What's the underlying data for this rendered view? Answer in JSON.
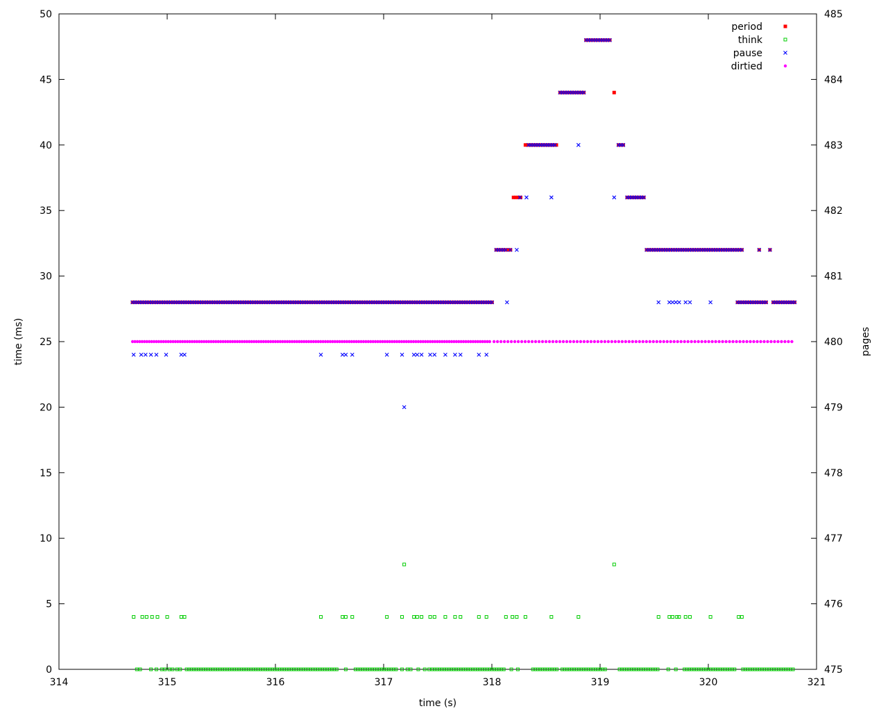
{
  "chart_data": {
    "type": "scatter",
    "title": "",
    "xlabel": "time (s)",
    "ylabel": "time (ms)",
    "y2label": "pages",
    "xlim": [
      314,
      321
    ],
    "ylim": [
      0,
      50
    ],
    "y2lim": [
      475,
      485
    ],
    "xticks": [
      314,
      315,
      316,
      317,
      318,
      319,
      320,
      321
    ],
    "yticks": [
      0,
      5,
      10,
      15,
      20,
      25,
      30,
      35,
      40,
      45,
      50
    ],
    "y2ticks": [
      475,
      476,
      477,
      478,
      479,
      480,
      481,
      482,
      483,
      484,
      485
    ],
    "grid": false,
    "legend_position": "top-right",
    "series": [
      {
        "name": "period",
        "axis": "y",
        "marker": "filled-square",
        "color": "#ff0000",
        "segments": [
          {
            "x_start": 314.68,
            "x_end": 318.01,
            "y": 28
          },
          {
            "x_start": 318.04,
            "x_end": 318.19,
            "y": 32
          },
          {
            "x_start": 318.2,
            "x_end": 318.27,
            "y": 36
          },
          {
            "x_start": 318.31,
            "x_end": 318.6,
            "y": 40
          },
          {
            "x_start": 318.63,
            "x_end": 318.85,
            "y": 44
          },
          {
            "x_start": 318.87,
            "x_end": 319.09,
            "y": 48
          },
          {
            "x_start": 319.17,
            "x_end": 319.22,
            "y": 40
          },
          {
            "x_start": 319.25,
            "x_end": 319.41,
            "y": 36
          },
          {
            "x_start": 319.43,
            "x_end": 320.31,
            "y": 32
          },
          {
            "x_start": 320.27,
            "x_end": 320.55,
            "y": 28
          },
          {
            "x_start": 320.6,
            "x_end": 320.8,
            "y": 28
          }
        ],
        "points": [
          [
            319.13,
            44
          ],
          [
            320.47,
            32
          ],
          [
            320.57,
            32
          ]
        ]
      },
      {
        "name": "think",
        "axis": "y",
        "marker": "open-square",
        "color": "#00cc00",
        "segments": [
          {
            "x_start": 315.18,
            "x_end": 316.58,
            "y": 0
          },
          {
            "x_start": 316.74,
            "x_end": 317.12,
            "y": 0
          },
          {
            "x_start": 317.45,
            "x_end": 317.98,
            "y": 0
          },
          {
            "x_start": 318.0,
            "x_end": 318.12,
            "y": 0
          },
          {
            "x_start": 318.38,
            "x_end": 318.62,
            "y": 0
          },
          {
            "x_start": 318.65,
            "x_end": 319.05,
            "y": 0
          },
          {
            "x_start": 319.18,
            "x_end": 319.55,
            "y": 0
          },
          {
            "x_start": 319.78,
            "x_end": 320.25,
            "y": 0
          },
          {
            "x_start": 320.32,
            "x_end": 320.8,
            "y": 0
          }
        ],
        "points": [
          [
            314.72,
            0
          ],
          [
            314.75,
            0
          ],
          [
            314.85,
            0
          ],
          [
            314.9,
            0
          ],
          [
            314.95,
            0
          ],
          [
            314.98,
            0
          ],
          [
            315.02,
            0
          ],
          [
            315.05,
            0
          ],
          [
            315.09,
            0
          ],
          [
            315.12,
            0
          ],
          [
            316.65,
            0
          ],
          [
            317.17,
            0
          ],
          [
            317.22,
            0
          ],
          [
            317.25,
            0
          ],
          [
            317.32,
            0
          ],
          [
            317.38,
            0
          ],
          [
            317.42,
            0
          ],
          [
            318.18,
            0
          ],
          [
            318.24,
            0
          ],
          [
            319.63,
            0
          ],
          [
            319.7,
            0
          ],
          [
            314.69,
            4
          ],
          [
            314.77,
            4
          ],
          [
            314.81,
            4
          ],
          [
            314.86,
            4
          ],
          [
            314.91,
            4
          ],
          [
            315.0,
            4
          ],
          [
            315.13,
            4
          ],
          [
            315.16,
            4
          ],
          [
            316.42,
            4
          ],
          [
            316.62,
            4
          ],
          [
            316.65,
            4
          ],
          [
            316.71,
            4
          ],
          [
            317.03,
            4
          ],
          [
            317.17,
            4
          ],
          [
            317.28,
            4
          ],
          [
            317.31,
            4
          ],
          [
            317.35,
            4
          ],
          [
            317.43,
            4
          ],
          [
            317.47,
            4
          ],
          [
            317.57,
            4
          ],
          [
            317.66,
            4
          ],
          [
            317.71,
            4
          ],
          [
            317.88,
            4
          ],
          [
            317.95,
            4
          ],
          [
            318.13,
            4
          ],
          [
            318.19,
            4
          ],
          [
            318.23,
            4
          ],
          [
            318.31,
            4
          ],
          [
            318.55,
            4
          ],
          [
            318.8,
            4
          ],
          [
            319.54,
            4
          ],
          [
            319.64,
            4
          ],
          [
            319.67,
            4
          ],
          [
            319.71,
            4
          ],
          [
            319.73,
            4
          ],
          [
            319.79,
            4
          ],
          [
            319.83,
            4
          ],
          [
            320.02,
            4
          ],
          [
            320.28,
            4
          ],
          [
            320.31,
            4
          ],
          [
            317.19,
            8
          ],
          [
            319.13,
            8
          ]
        ]
      },
      {
        "name": "pause",
        "axis": "y",
        "marker": "cross",
        "color": "#0000ff",
        "segments": [
          {
            "x_start": 314.68,
            "x_end": 318.01,
            "y": 28
          },
          {
            "x_start": 318.04,
            "x_end": 318.13,
            "y": 32
          },
          {
            "x_start": 318.34,
            "x_end": 318.6,
            "y": 40
          },
          {
            "x_start": 318.63,
            "x_end": 318.85,
            "y": 44
          },
          {
            "x_start": 318.87,
            "x_end": 319.09,
            "y": 48
          },
          {
            "x_start": 319.17,
            "x_end": 319.22,
            "y": 40
          },
          {
            "x_start": 319.25,
            "x_end": 319.41,
            "y": 36
          },
          {
            "x_start": 319.43,
            "x_end": 320.31,
            "y": 32
          },
          {
            "x_start": 320.27,
            "x_end": 320.55,
            "y": 28
          },
          {
            "x_start": 320.6,
            "x_end": 320.8,
            "y": 28
          }
        ],
        "points": [
          [
            314.69,
            24
          ],
          [
            314.76,
            24
          ],
          [
            314.8,
            24
          ],
          [
            314.85,
            24
          ],
          [
            314.9,
            24
          ],
          [
            314.99,
            24
          ],
          [
            315.13,
            24
          ],
          [
            315.16,
            24
          ],
          [
            316.42,
            24
          ],
          [
            316.62,
            24
          ],
          [
            316.65,
            24
          ],
          [
            316.71,
            24
          ],
          [
            317.03,
            24
          ],
          [
            317.17,
            24
          ],
          [
            317.28,
            24
          ],
          [
            317.31,
            24
          ],
          [
            317.35,
            24
          ],
          [
            317.43,
            24
          ],
          [
            317.47,
            24
          ],
          [
            317.57,
            24
          ],
          [
            317.66,
            24
          ],
          [
            317.71,
            24
          ],
          [
            317.88,
            24
          ],
          [
            317.95,
            24
          ],
          [
            317.19,
            20
          ],
          [
            318.14,
            28
          ],
          [
            319.54,
            28
          ],
          [
            319.64,
            28
          ],
          [
            319.67,
            28
          ],
          [
            319.7,
            28
          ],
          [
            319.73,
            28
          ],
          [
            319.79,
            28
          ],
          [
            319.83,
            28
          ],
          [
            320.02,
            28
          ],
          [
            318.17,
            32
          ],
          [
            318.23,
            32
          ],
          [
            318.26,
            36
          ],
          [
            318.32,
            36
          ],
          [
            318.55,
            36
          ],
          [
            319.13,
            36
          ],
          [
            318.8,
            40
          ],
          [
            320.47,
            32
          ],
          [
            320.57,
            32
          ]
        ]
      },
      {
        "name": "dirtied",
        "axis": "y2",
        "marker": "filled-circle",
        "color": "#ff00ff",
        "segments": [
          {
            "x_start": 314.68,
            "x_end": 318.0,
            "y": 480,
            "step": 0.022
          },
          {
            "x_start": 318.02,
            "x_end": 320.8,
            "y": 480,
            "step": 0.032
          }
        ],
        "points": []
      }
    ]
  }
}
